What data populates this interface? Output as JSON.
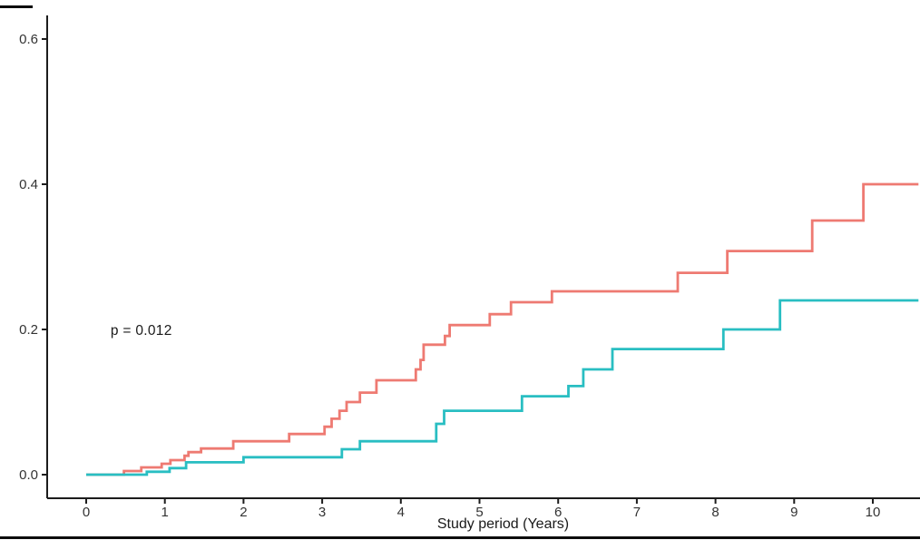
{
  "chart_data": {
    "type": "line",
    "subtype": "step-cumulative-incidence",
    "title": "",
    "xlabel": "Study period (Years)",
    "ylabel": "",
    "xlim": [
      -0.5,
      10.6
    ],
    "ylim": [
      0,
      0.6325
    ],
    "grid": false,
    "legend": "none",
    "background_color": "#ffffff",
    "axis_color": "#1c1c1c",
    "tick_label_color": "#333333",
    "x_ticks": [
      {
        "t": 0,
        "label": "0"
      },
      {
        "t": 1,
        "label": "1"
      },
      {
        "t": 2,
        "label": "2"
      },
      {
        "t": 3,
        "label": "3"
      },
      {
        "t": 4,
        "label": "4"
      },
      {
        "t": 5,
        "label": "5"
      },
      {
        "t": 6,
        "label": "6"
      },
      {
        "t": 7,
        "label": "7"
      },
      {
        "t": 8,
        "label": "8"
      },
      {
        "t": 9,
        "label": "9"
      },
      {
        "t": 10,
        "label": "10"
      }
    ],
    "y_ticks": [
      {
        "v": 0.0,
        "label": "0.0"
      },
      {
        "v": 0.2,
        "label": "0.2"
      },
      {
        "v": 0.4,
        "label": "0.4"
      },
      {
        "v": 0.6,
        "label": "0.6"
      }
    ],
    "annotation": {
      "text": "p = 0.012",
      "x": 0.31,
      "y": 0.198
    },
    "t_start": 0,
    "t_end": 10.58,
    "series": [
      {
        "name": "group-1-red",
        "color": "#ee7a72",
        "start_value": 0,
        "steps": [
          [
            0.48,
            0.005
          ],
          [
            0.7,
            0.01
          ],
          [
            0.96,
            0.015
          ],
          [
            1.07,
            0.02
          ],
          [
            1.25,
            0.026
          ],
          [
            1.3,
            0.031
          ],
          [
            1.46,
            0.036
          ],
          [
            1.87,
            0.046
          ],
          [
            2.58,
            0.056
          ],
          [
            3.03,
            0.066
          ],
          [
            3.12,
            0.077
          ],
          [
            3.22,
            0.088
          ],
          [
            3.31,
            0.1
          ],
          [
            3.48,
            0.113
          ],
          [
            3.69,
            0.13
          ],
          [
            4.19,
            0.145
          ],
          [
            4.25,
            0.158
          ],
          [
            4.29,
            0.179
          ],
          [
            4.56,
            0.191
          ],
          [
            4.62,
            0.206
          ],
          [
            5.13,
            0.221
          ],
          [
            5.4,
            0.2375
          ],
          [
            5.92,
            0.2525
          ],
          [
            7.52,
            0.278
          ],
          [
            8.15,
            0.308
          ],
          [
            9.23,
            0.35
          ],
          [
            9.88,
            0.4
          ]
        ]
      },
      {
        "name": "group-2-teal",
        "color": "#29bec2",
        "start_value": 0,
        "steps": [
          [
            0.77,
            0.004
          ],
          [
            1.06,
            0.009
          ],
          [
            1.27,
            0.017
          ],
          [
            2.0,
            0.024
          ],
          [
            3.25,
            0.035
          ],
          [
            3.48,
            0.046
          ],
          [
            4.45,
            0.07
          ],
          [
            4.55,
            0.088
          ],
          [
            5.54,
            0.108
          ],
          [
            6.13,
            0.122
          ],
          [
            6.32,
            0.145
          ],
          [
            6.69,
            0.173
          ],
          [
            8.1,
            0.2
          ],
          [
            8.82,
            0.24
          ]
        ]
      }
    ]
  }
}
